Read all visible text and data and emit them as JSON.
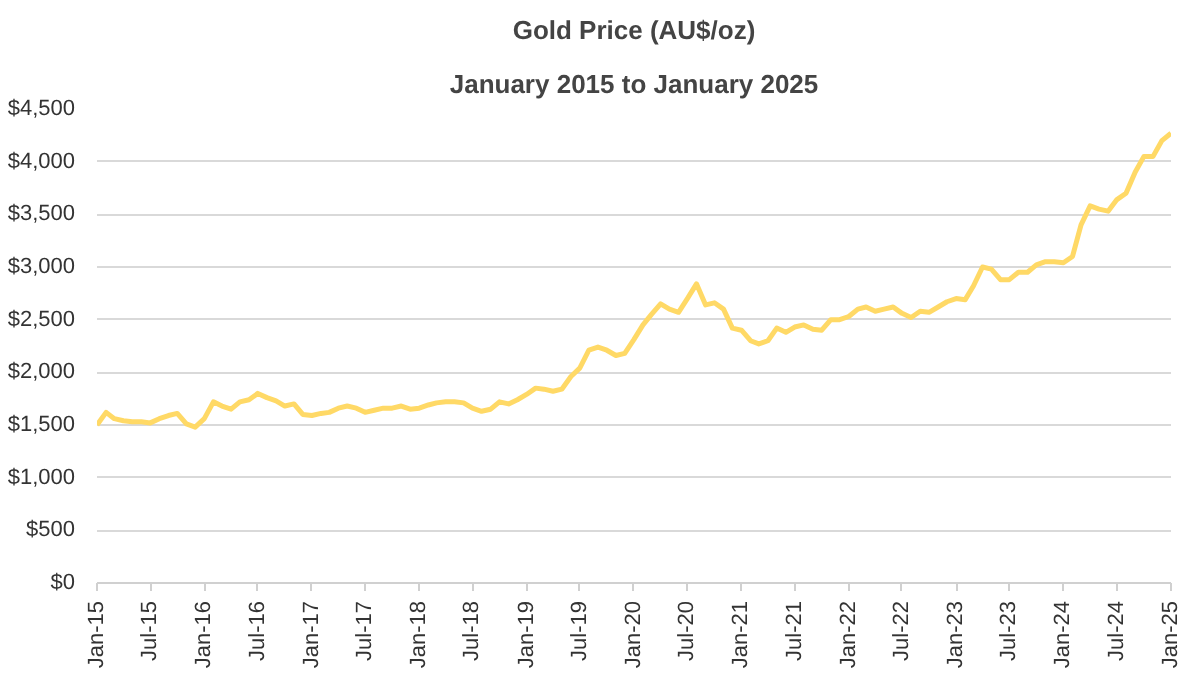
{
  "chart_data": {
    "type": "line",
    "title": "Gold Price (AU$/oz)",
    "subtitle": "January 2015 to January 2025",
    "x": [
      "2015-01",
      "2015-02",
      "2015-03",
      "2015-04",
      "2015-05",
      "2015-06",
      "2015-07",
      "2015-08",
      "2015-09",
      "2015-10",
      "2015-11",
      "2015-12",
      "2016-01",
      "2016-02",
      "2016-03",
      "2016-04",
      "2016-05",
      "2016-06",
      "2016-07",
      "2016-08",
      "2016-09",
      "2016-10",
      "2016-11",
      "2016-12",
      "2017-01",
      "2017-02",
      "2017-03",
      "2017-04",
      "2017-05",
      "2017-06",
      "2017-07",
      "2017-08",
      "2017-09",
      "2017-10",
      "2017-11",
      "2017-12",
      "2018-01",
      "2018-02",
      "2018-03",
      "2018-04",
      "2018-05",
      "2018-06",
      "2018-07",
      "2018-08",
      "2018-09",
      "2018-10",
      "2018-11",
      "2018-12",
      "2019-01",
      "2019-02",
      "2019-03",
      "2019-04",
      "2019-05",
      "2019-06",
      "2019-07",
      "2019-08",
      "2019-09",
      "2019-10",
      "2019-11",
      "2019-12",
      "2020-01",
      "2020-02",
      "2020-03",
      "2020-04",
      "2020-05",
      "2020-06",
      "2020-07",
      "2020-08",
      "2020-09",
      "2020-10",
      "2020-11",
      "2020-12",
      "2021-01",
      "2021-02",
      "2021-03",
      "2021-04",
      "2021-05",
      "2021-06",
      "2021-07",
      "2021-08",
      "2021-09",
      "2021-10",
      "2021-11",
      "2021-12",
      "2022-01",
      "2022-02",
      "2022-03",
      "2022-04",
      "2022-05",
      "2022-06",
      "2022-07",
      "2022-08",
      "2022-09",
      "2022-10",
      "2022-11",
      "2022-12",
      "2023-01",
      "2023-02",
      "2023-03",
      "2023-04",
      "2023-05",
      "2023-06",
      "2023-07",
      "2023-08",
      "2023-09",
      "2023-10",
      "2023-11",
      "2023-12",
      "2024-01",
      "2024-02",
      "2024-03",
      "2024-04",
      "2024-05",
      "2024-06",
      "2024-07",
      "2024-08",
      "2024-09",
      "2024-10",
      "2024-11",
      "2024-12",
      "2025-01"
    ],
    "series": [
      {
        "color": "#ffd966",
        "values": [
          1500,
          1620,
          1560,
          1540,
          1530,
          1530,
          1520,
          1560,
          1590,
          1610,
          1510,
          1480,
          1560,
          1720,
          1680,
          1650,
          1720,
          1740,
          1800,
          1760,
          1730,
          1680,
          1700,
          1600,
          1590,
          1610,
          1620,
          1660,
          1680,
          1660,
          1620,
          1640,
          1660,
          1660,
          1680,
          1650,
          1660,
          1690,
          1710,
          1720,
          1720,
          1710,
          1660,
          1630,
          1650,
          1720,
          1700,
          1740,
          1790,
          1850,
          1840,
          1820,
          1840,
          1960,
          2040,
          2210,
          2240,
          2210,
          2160,
          2180,
          2310,
          2450,
          2550,
          2650,
          2600,
          2570,
          2700,
          2840,
          2640,
          2660,
          2600,
          2420,
          2400,
          2300,
          2270,
          2300,
          2420,
          2380,
          2430,
          2450,
          2410,
          2400,
          2500,
          2500,
          2530,
          2600,
          2620,
          2580,
          2600,
          2620,
          2560,
          2520,
          2580,
          2570,
          2620,
          2670,
          2700,
          2690,
          2820,
          3000,
          2980,
          2880,
          2880,
          2950,
          2950,
          3020,
          3050,
          3050,
          3040,
          3100,
          3400,
          3580,
          3550,
          3530,
          3640,
          3700,
          3900,
          4050,
          4050,
          4200,
          4270
        ]
      }
    ],
    "xlim": [
      "2015-01",
      "2025-01"
    ],
    "xticks": [
      {
        "value": "2015-01",
        "label": "Jan-15"
      },
      {
        "value": "2015-07",
        "label": "Jul-15"
      },
      {
        "value": "2016-01",
        "label": "Jan-16"
      },
      {
        "value": "2016-07",
        "label": "Jul-16"
      },
      {
        "value": "2017-01",
        "label": "Jan-17"
      },
      {
        "value": "2017-07",
        "label": "Jul-17"
      },
      {
        "value": "2018-01",
        "label": "Jan-18"
      },
      {
        "value": "2018-07",
        "label": "Jul-18"
      },
      {
        "value": "2019-01",
        "label": "Jan-19"
      },
      {
        "value": "2019-07",
        "label": "Jul-19"
      },
      {
        "value": "2020-01",
        "label": "Jan-20"
      },
      {
        "value": "2020-07",
        "label": "Jul-20"
      },
      {
        "value": "2021-01",
        "label": "Jan-21"
      },
      {
        "value": "2021-07",
        "label": "Jul-21"
      },
      {
        "value": "2022-01",
        "label": "Jan-22"
      },
      {
        "value": "2022-07",
        "label": "Jul-22"
      },
      {
        "value": "2023-01",
        "label": "Jan-23"
      },
      {
        "value": "2023-07",
        "label": "Jul-23"
      },
      {
        "value": "2024-01",
        "label": "Jan-24"
      },
      {
        "value": "2024-07",
        "label": "Jul-24"
      },
      {
        "value": "2025-01",
        "label": "Jan-25"
      }
    ],
    "ylim": [
      0,
      4500
    ],
    "yticks": [
      {
        "value": 0,
        "label": "$0"
      },
      {
        "value": 500,
        "label": "$500"
      },
      {
        "value": 1000,
        "label": "$1,000"
      },
      {
        "value": 1500,
        "label": "$1,500"
      },
      {
        "value": 2000,
        "label": "$2,000"
      },
      {
        "value": 2500,
        "label": "$2,500"
      },
      {
        "value": 3000,
        "label": "$3,000"
      },
      {
        "value": 3500,
        "label": "$3,500"
      },
      {
        "value": 4000,
        "label": "$4,000"
      },
      {
        "value": 4500,
        "label": "$4,500"
      }
    ],
    "grid": "y",
    "marker": "none",
    "line_style": "solid"
  }
}
